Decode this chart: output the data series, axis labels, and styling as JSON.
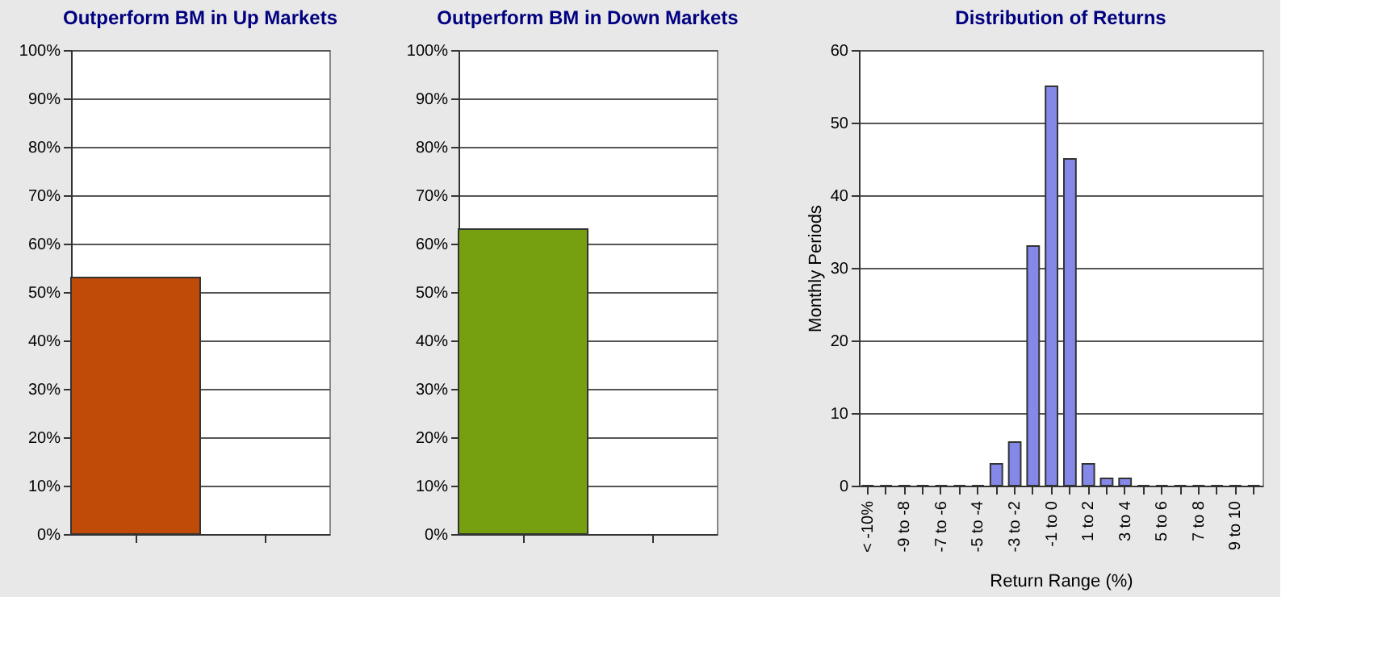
{
  "chart_data": [
    {
      "type": "bar",
      "title": "Outperform BM in Up Markets",
      "categories": [
        null,
        null
      ],
      "series": [
        {
          "color": "#c04a08",
          "values": [
            53,
            null
          ]
        }
      ],
      "ylim": [
        0,
        100
      ],
      "yticks": [
        {
          "value": 0,
          "label": "0%"
        },
        {
          "value": 10,
          "label": "10%"
        },
        {
          "value": 20,
          "label": "20%"
        },
        {
          "value": 30,
          "label": "30%"
        },
        {
          "value": 40,
          "label": "40%"
        },
        {
          "value": 50,
          "label": "50%"
        },
        {
          "value": 60,
          "label": "60%"
        },
        {
          "value": 70,
          "label": "70%"
        },
        {
          "value": 80,
          "label": "80%"
        },
        {
          "value": 90,
          "label": "90%"
        },
        {
          "value": 100,
          "label": "100%"
        }
      ],
      "grid": "y",
      "legend": false
    },
    {
      "type": "bar",
      "title": "Outperform BM in Down Markets",
      "categories": [
        null,
        null
      ],
      "series": [
        {
          "color": "#76a010",
          "values": [
            63,
            null
          ]
        }
      ],
      "ylim": [
        0,
        100
      ],
      "yticks": [
        {
          "value": 0,
          "label": "0%"
        },
        {
          "value": 10,
          "label": "10%"
        },
        {
          "value": 20,
          "label": "20%"
        },
        {
          "value": 30,
          "label": "30%"
        },
        {
          "value": 40,
          "label": "40%"
        },
        {
          "value": 50,
          "label": "50%"
        },
        {
          "value": 60,
          "label": "60%"
        },
        {
          "value": 70,
          "label": "70%"
        },
        {
          "value": 80,
          "label": "80%"
        },
        {
          "value": 90,
          "label": "90%"
        },
        {
          "value": 100,
          "label": "100%"
        }
      ],
      "grid": "y",
      "legend": false
    },
    {
      "type": "bar",
      "title": "Distribution of Returns",
      "xlabel": "Return Range (%)",
      "ylabel": "Monthly Periods",
      "categories": [
        "< -10%",
        null,
        "-9 to -8",
        null,
        "-7 to -6",
        null,
        "-5 to -4",
        null,
        "-3 to -2",
        null,
        "-1 to 0",
        null,
        "1 to 2",
        null,
        "3 to 4",
        null,
        "5 to 6",
        null,
        "7 to 8",
        null,
        "9 to 10",
        null
      ],
      "series": [
        {
          "color": "#8488e8",
          "values": [
            0,
            0,
            0,
            0,
            0,
            0,
            0,
            3,
            6,
            33,
            55,
            45,
            3,
            1,
            1,
            0,
            0,
            0,
            0,
            0,
            0,
            0
          ]
        }
      ],
      "ylim": [
        0,
        60
      ],
      "yticks": [
        0,
        10,
        20,
        30,
        40,
        50,
        60
      ],
      "grid": "y",
      "legend": false
    }
  ]
}
